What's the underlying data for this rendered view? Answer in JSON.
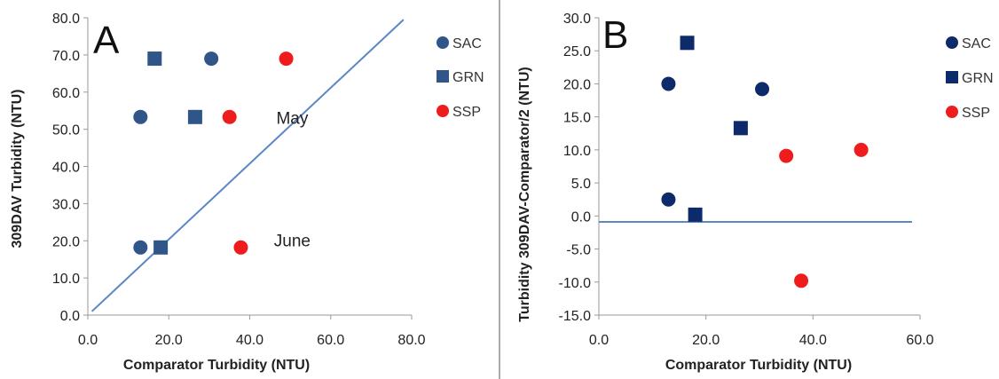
{
  "chart_data": [
    {
      "type": "scatter",
      "panel_label": "A",
      "xlabel": "Comparator Turbidity (NTU)",
      "ylabel": "309DAV Turbidity (NTU)",
      "xlim": [
        0,
        80
      ],
      "ylim": [
        0,
        80
      ],
      "x_ticks": [
        "0.0",
        "20.0",
        "40.0",
        "60.0",
        "80.0"
      ],
      "y_ticks": [
        "0.0",
        "10.0",
        "20.0",
        "30.0",
        "40.0",
        "50.0",
        "60.0",
        "70.0",
        "80.0"
      ],
      "grid": false,
      "legend_position": "right",
      "series": [
        {
          "name": "SAC",
          "marker": "circle",
          "color": "#2F5589",
          "points": [
            [
              13,
              18.2
            ],
            [
              13,
              53.3
            ],
            [
              30.5,
              69
            ]
          ]
        },
        {
          "name": "GRN",
          "marker": "square",
          "color": "#2F5589",
          "points": [
            [
              18,
              18.2
            ],
            [
              16.5,
              69
            ],
            [
              26.5,
              53.3
            ]
          ]
        },
        {
          "name": "SSP",
          "marker": "circle",
          "color": "#EE1C1C",
          "points": [
            [
              37.8,
              18.2
            ],
            [
              35,
              53.3
            ],
            [
              49,
              69
            ]
          ]
        }
      ],
      "reference_line": {
        "from": [
          1,
          1
        ],
        "to": [
          78,
          79.5
        ],
        "color": "#5B87C5"
      },
      "annotations": [
        {
          "text": "May",
          "x": 50.5,
          "y": 51.5
        },
        {
          "text": "June",
          "x": 50.5,
          "y": 18.5
        }
      ]
    },
    {
      "type": "scatter",
      "panel_label": "B",
      "xlabel": "Comparator Turbidity (NTU)",
      "ylabel": "Turbidity 309DAV-Comparator/2  (NTU)",
      "xlim": [
        0,
        60
      ],
      "ylim": [
        -15,
        30
      ],
      "x_ticks": [
        "0.0",
        "20.0",
        "40.0",
        "60.0"
      ],
      "y_ticks": [
        "-15.0",
        "-10.0",
        "-5.0",
        "0.0",
        "5.0",
        "10.0",
        "15.0",
        "20.0",
        "25.0",
        "30.0"
      ],
      "grid": false,
      "legend_position": "right",
      "series": [
        {
          "name": "SAC",
          "marker": "circle",
          "color": "#0D2A6B",
          "points": [
            [
              13,
              2.5
            ],
            [
              13,
              20
            ],
            [
              30.5,
              19.2
            ]
          ]
        },
        {
          "name": "GRN",
          "marker": "square",
          "color": "#0D2A6B",
          "points": [
            [
              18,
              0.2
            ],
            [
              16.5,
              26.2
            ],
            [
              26.5,
              13.3
            ]
          ]
        },
        {
          "name": "SSP",
          "marker": "circle",
          "color": "#EE1C1C",
          "points": [
            [
              37.8,
              -9.8
            ],
            [
              35,
              9.1
            ],
            [
              49,
              10
            ]
          ]
        }
      ],
      "reference_line": {
        "from": [
          0,
          -0.9
        ],
        "to": [
          58.5,
          -0.9
        ],
        "color": "#5B87C5"
      }
    }
  ]
}
